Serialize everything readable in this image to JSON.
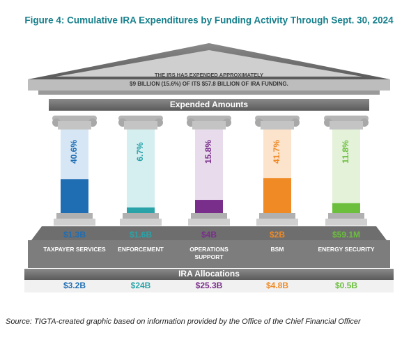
{
  "title": "Figure 4: Cumulative IRA Expenditures by Funding Activity Through Sept. 30, 2024",
  "chart_data": {
    "type": "pillar",
    "banner": [
      "THE IRS HAS EXPENDED APPROXIMATELY",
      "$9 BILLION (15.6%) OF ITS $57.8 BILLION OF IRA FUNDING."
    ],
    "expended_heading": "Expended Amounts",
    "categories": [
      "TAXPAYER SERVICES",
      "ENFORCEMENT",
      "OPERATIONS SUPPORT",
      "BSM",
      "ENERGY SECURITY"
    ],
    "values": [
      40.6,
      6.7,
      15.8,
      41.7,
      11.8
    ],
    "value_labels": [
      "40.6%",
      "6.7%",
      "15.8%",
      "41.7%",
      "11.8%"
    ],
    "expended": [
      "$1.3B",
      "$1.6B",
      "$4B",
      "$2B",
      "$59.1M"
    ],
    "allocations_heading": "IRA Allocations",
    "allocations": [
      "$3.2B",
      "$24B",
      "$25.3B",
      "$4.8B",
      "$0.5B"
    ],
    "colors": [
      "#1f6db3",
      "#2aa3a8",
      "#7a2e8c",
      "#ef8a25",
      "#6bbf3d"
    ],
    "light_colors": [
      "#d6e6f4",
      "#d5eef0",
      "#e8dcec",
      "#fbe3cc",
      "#e3f2d9"
    ],
    "ylim": [
      0,
      100
    ]
  },
  "source": "Source: TIGTA-created graphic based on information provided by the Office of the Chief Financial Officer"
}
